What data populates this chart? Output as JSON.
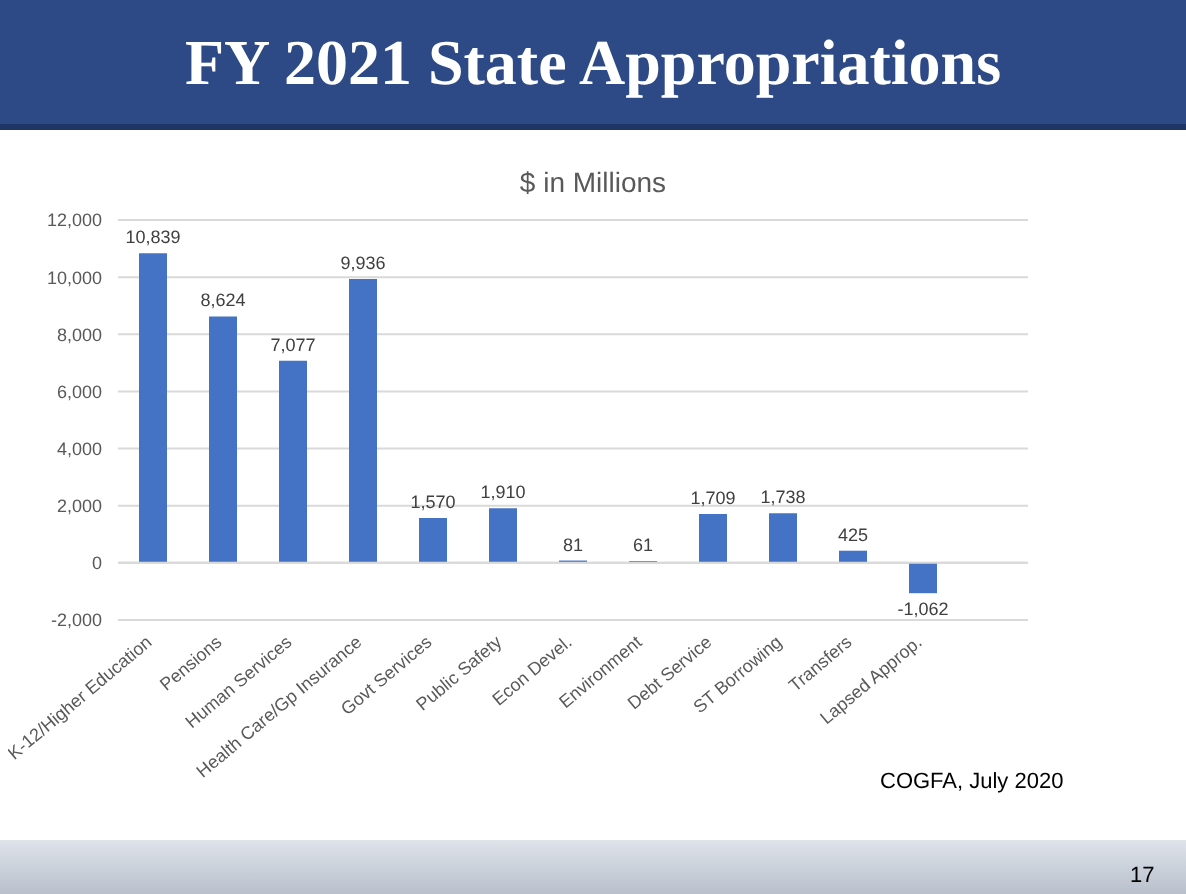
{
  "chart_data": {
    "type": "bar",
    "title": "FY 2021 State Appropriations",
    "subtitle": "$ in Millions",
    "categories": [
      "K-12/Higher Education",
      "Pensions",
      "Human Services",
      "Health Care/Gp Insurance",
      "Govt Services",
      "Public Safety",
      "Econ Devel.",
      "Environment",
      "Debt Service",
      "ST Borrowing",
      "Transfers",
      "Lapsed Approp.",
      null
    ],
    "values": [
      10839,
      8624,
      7077,
      9936,
      1570,
      1910,
      81,
      61,
      1709,
      1738,
      425,
      -1062,
      null
    ],
    "value_labels": [
      "10,839",
      "8,624",
      "7,077",
      "9,936",
      "1,570",
      "1,910",
      "81",
      "61",
      "1,709",
      "1,738",
      "425",
      "-1,062",
      null
    ],
    "color": "#4472c4",
    "ylim": [
      -2000,
      12000
    ],
    "yticks": [
      {
        "value": -2000,
        "label": "-2,000"
      },
      0,
      {
        "value": 2000,
        "label": "2,000"
      },
      {
        "value": 4000,
        "label": "4,000"
      },
      {
        "value": 6000,
        "label": "6,000"
      },
      {
        "value": 8000,
        "label": "8,000"
      },
      {
        "value": 10000,
        "label": "10,000"
      },
      {
        "value": 12000,
        "label": "12,000"
      }
    ],
    "grid": "y",
    "annotations": [
      "COGFA, July 2020",
      "17"
    ]
  }
}
